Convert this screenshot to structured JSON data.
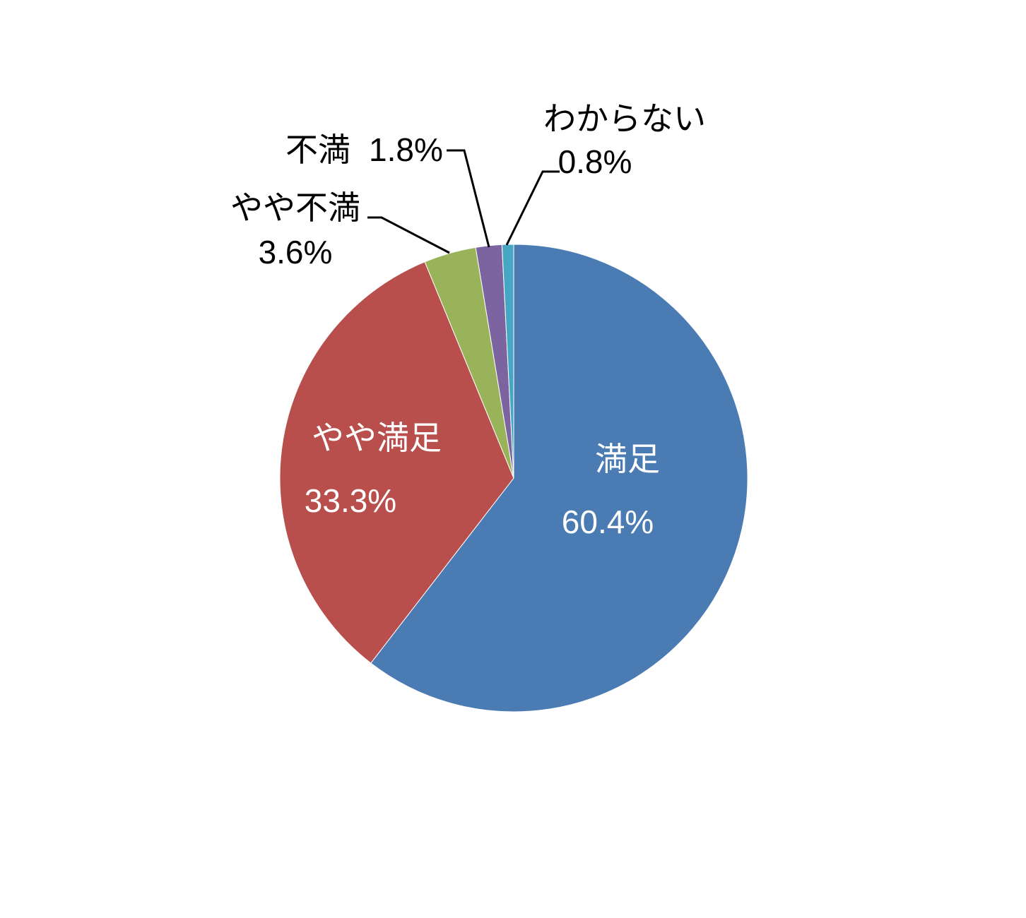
{
  "chart_data": {
    "type": "pie",
    "start_angle": "12 o'clock",
    "direction": "clockwise",
    "legend": "none",
    "slices": [
      {
        "label": "満足",
        "value": 60.4,
        "value_label": "60.4%",
        "color": "#4a7bb3"
      },
      {
        "label": "やや満足",
        "value": 33.3,
        "value_label": "33.3%",
        "color": "#b84f4c"
      },
      {
        "label": "やや不満",
        "value": 3.6,
        "value_label": "3.6%",
        "color": "#98b35a"
      },
      {
        "label": "不満",
        "value": 1.8,
        "value_label": "1.8%",
        "color": "#7c64a0"
      },
      {
        "label": "わからない",
        "value": 0.8,
        "value_label": "0.8%",
        "color": "#46a6c4"
      }
    ]
  }
}
